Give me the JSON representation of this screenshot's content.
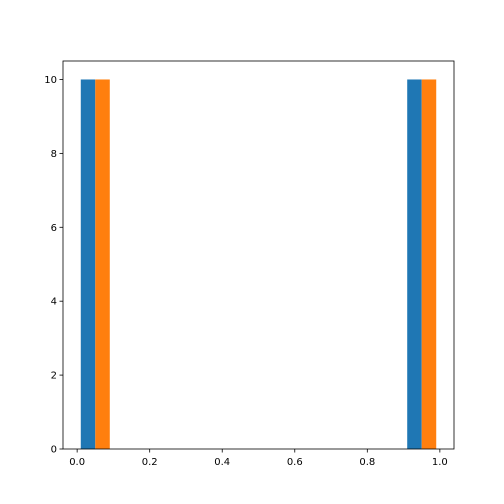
{
  "chart_data": {
    "type": "histogram",
    "bins": [
      0,
      0.1,
      0.2,
      0.3,
      0.4,
      0.5,
      0.6,
      0.7,
      0.8,
      0.9,
      1.0
    ],
    "series": [
      {
        "color": "#1f77b4",
        "values": [
          10,
          0,
          0,
          0,
          0,
          0,
          0,
          0,
          0,
          10
        ]
      },
      {
        "color": "#ff7f0e",
        "values": [
          10,
          0,
          0,
          0,
          0,
          0,
          0,
          0,
          0,
          10
        ]
      }
    ],
    "xlim": [
      -0.039,
      1.039
    ],
    "xticks": [
      {
        "value": 0,
        "label": "0.0"
      },
      0.2,
      0.4,
      0.6,
      0.8,
      {
        "value": 1,
        "label": "1.0"
      }
    ],
    "ylim": [
      0,
      10.5
    ],
    "yticks": [
      0,
      2,
      4,
      6,
      8,
      10
    ],
    "grid": false
  }
}
